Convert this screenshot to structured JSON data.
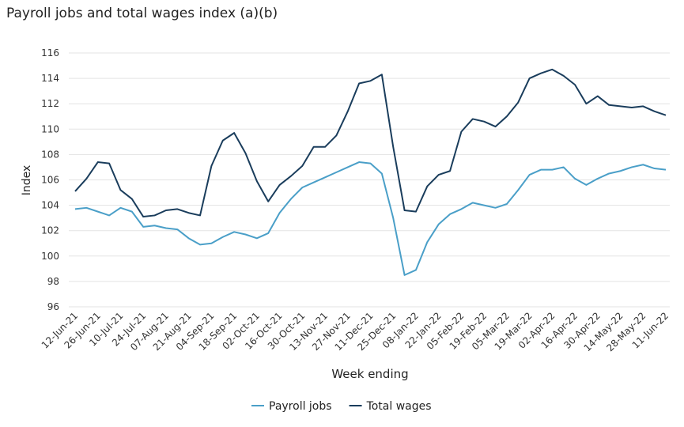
{
  "chart_data": {
    "type": "line",
    "title": "Payroll jobs and total wages index (a)(b)",
    "x_label": "Week ending",
    "y_label": "Index",
    "categories": [
      "12-Jun-21",
      null,
      "26-Jun-21",
      null,
      "10-Jul-21",
      null,
      "24-Jul-21",
      null,
      "07-Aug-21",
      null,
      "21-Aug-21",
      null,
      "04-Sep-21",
      null,
      "18-Sep-21",
      null,
      "02-Oct-21",
      null,
      "16-Oct-21",
      null,
      "30-Oct-21",
      null,
      "13-Nov-21",
      null,
      "27-Nov-21",
      null,
      "11-Dec-21",
      null,
      "25-Dec-21",
      null,
      "08-Jan-22",
      null,
      "22-Jan-22",
      null,
      "05-Feb-22",
      null,
      "19-Feb-22",
      null,
      "05-Mar-22",
      null,
      "19-Mar-22",
      null,
      "02-Apr-22",
      null,
      "16-Apr-22",
      null,
      "30-Apr-22",
      null,
      "14-May-22",
      null,
      "28-May-22",
      null,
      "11-Jun-22"
    ],
    "series": [
      {
        "name": "Payroll jobs",
        "color": "#4a9fc8",
        "values": [
          103.7,
          103.8,
          103.5,
          103.2,
          103.8,
          103.5,
          102.3,
          102.4,
          102.2,
          102.1,
          101.4,
          100.9,
          101.0,
          101.5,
          101.9,
          101.7,
          101.4,
          101.8,
          103.4,
          104.5,
          105.4,
          105.8,
          106.2,
          106.6,
          107.0,
          107.4,
          107.3,
          106.5,
          103.0,
          98.5,
          98.9,
          101.1,
          102.5,
          103.3,
          103.7,
          104.2,
          104.0,
          103.8,
          104.1,
          105.2,
          106.4,
          106.8,
          106.8,
          107.0,
          106.1,
          105.6,
          106.1,
          106.5,
          106.7,
          107.0,
          107.2,
          106.9,
          106.8
        ]
      },
      {
        "name": "Total wages",
        "color": "#1a3d5c",
        "values": [
          105.1,
          106.1,
          107.4,
          107.3,
          105.2,
          104.5,
          103.1,
          103.2,
          103.6,
          103.7,
          103.4,
          103.2,
          107.1,
          109.1,
          109.7,
          108.1,
          105.9,
          104.3,
          105.6,
          106.3,
          107.1,
          108.6,
          108.6,
          109.5,
          111.4,
          113.6,
          113.8,
          114.3,
          108.6,
          103.6,
          103.5,
          105.5,
          106.4,
          106.7,
          109.8,
          110.8,
          110.6,
          110.2,
          111.0,
          112.1,
          114.0,
          114.4,
          114.7,
          114.2,
          113.5,
          112.0,
          112.6,
          111.9,
          111.8,
          111.7,
          111.8,
          111.4,
          111.1
        ]
      }
    ],
    "ylim": [
      96,
      116
    ],
    "yticks": [
      96,
      98,
      100,
      102,
      104,
      106,
      108,
      110,
      112,
      114,
      116
    ],
    "grid": true,
    "legend": "bottom"
  }
}
